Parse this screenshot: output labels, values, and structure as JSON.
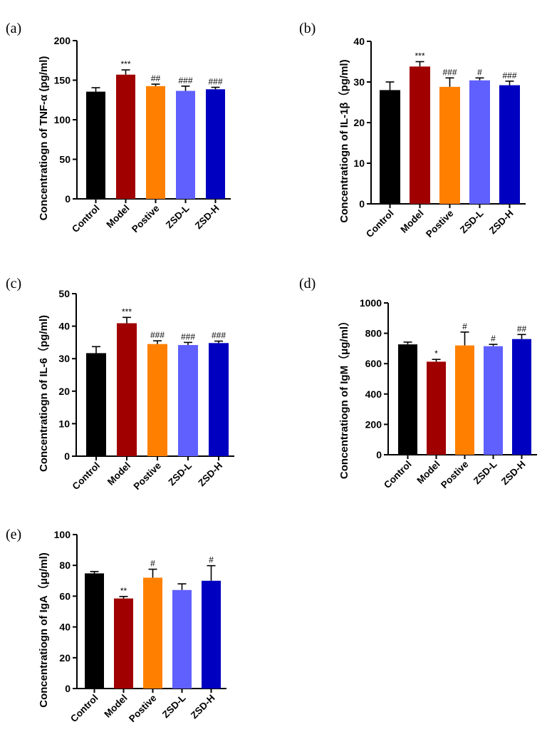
{
  "chart_data": [
    {
      "type": "bar",
      "panel_label": "(a)",
      "ylabel": "Concentratiogn of TNF-α (pg/ml)",
      "ylim": [
        0,
        200
      ],
      "yticks": [
        "0",
        "50",
        "100",
        "150",
        "200"
      ],
      "categories": [
        "Control",
        "Model",
        "Postive",
        "ZSD-L",
        "ZSD-H"
      ],
      "values": [
        135.5,
        157,
        142.5,
        136.5,
        138.5
      ],
      "errors": [
        5,
        6,
        2.5,
        6,
        2.5
      ],
      "colors": [
        "#000000",
        "#a00000",
        "#ff8000",
        "#6060ff",
        "#0000c0"
      ],
      "significance": [
        "",
        "***",
        "##",
        "###",
        "###"
      ]
    },
    {
      "type": "bar",
      "panel_label": "(b)",
      "ylabel": "Concentratiogn of IL-1β（pg/ml)",
      "ylim": [
        0,
        40
      ],
      "yticks": [
        "0",
        "10",
        "20",
        "30",
        "40"
      ],
      "categories": [
        "Control",
        "Model",
        "Postive",
        "ZSD-L",
        "ZSD-H"
      ],
      "values": [
        28,
        33.8,
        28.8,
        30.4,
        29.2
      ],
      "errors": [
        2,
        1.2,
        2.2,
        0.6,
        1
      ],
      "colors": [
        "#000000",
        "#a00000",
        "#ff8000",
        "#6060ff",
        "#0000c0"
      ],
      "significance": [
        "",
        "***",
        "###",
        "#",
        "###"
      ]
    },
    {
      "type": "bar",
      "panel_label": "(c)",
      "ylabel": "Concentratiogn of IL-6（pg/ml)",
      "ylim": [
        0,
        50
      ],
      "yticks": [
        "0",
        "10",
        "20",
        "30",
        "40",
        "50"
      ],
      "categories": [
        "Control",
        "Model",
        "Postive",
        "ZSD-L",
        "ZSD-H"
      ],
      "values": [
        31.7,
        40.9,
        34.5,
        34.2,
        34.8
      ],
      "errors": [
        2,
        1.8,
        1,
        0.8,
        0.6
      ],
      "colors": [
        "#000000",
        "#a00000",
        "#ff8000",
        "#6060ff",
        "#0000c0"
      ],
      "significance": [
        "",
        "***",
        "###",
        "###",
        "###"
      ]
    },
    {
      "type": "bar",
      "panel_label": "(d)",
      "ylabel": "Concentratiogn of IgM（μg/ml）",
      "ylim": [
        0,
        1000
      ],
      "yticks": [
        "0",
        "200",
        "400",
        "600",
        "800",
        "1000"
      ],
      "categories": [
        "Control",
        "Model",
        "Postive",
        "ZSD-L",
        "ZSD-H"
      ],
      "values": [
        727,
        613,
        720,
        715,
        762
      ],
      "errors": [
        15,
        15,
        88,
        12,
        30
      ],
      "colors": [
        "#000000",
        "#a00000",
        "#ff8000",
        "#6060ff",
        "#0000c0"
      ],
      "significance": [
        "",
        "*",
        "#",
        "#",
        "##"
      ]
    },
    {
      "type": "bar",
      "panel_label": "(e)",
      "ylabel": "Concentratiogn of IgA（μg/ml)",
      "ylim": [
        0,
        100
      ],
      "yticks": [
        "0",
        "20",
        "40",
        "60",
        "80",
        "100"
      ],
      "categories": [
        "Control",
        "Model",
        "Postive",
        "ZSD-L",
        "ZSD-H"
      ],
      "values": [
        74.8,
        58.5,
        72,
        64,
        70
      ],
      "errors": [
        1.2,
        1.3,
        5.5,
        4,
        9.8
      ],
      "colors": [
        "#000000",
        "#a00000",
        "#ff8000",
        "#6060ff",
        "#0000c0"
      ],
      "significance": [
        "",
        "**",
        "#",
        "",
        "#"
      ]
    }
  ]
}
